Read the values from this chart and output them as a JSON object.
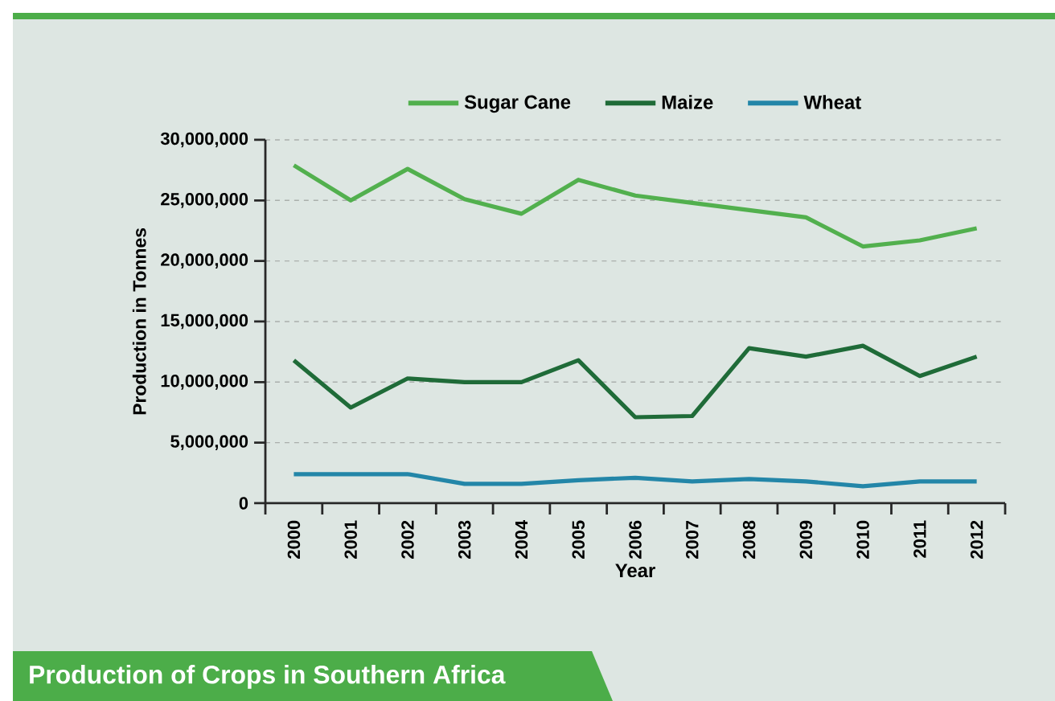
{
  "chart_data": {
    "type": "line",
    "title": "Production of Crops in Southern Africa",
    "xlabel": "Year",
    "ylabel": "Production in Tonnes",
    "categories": [
      "2000",
      "2001",
      "2002",
      "2003",
      "2004",
      "2005",
      "2006",
      "2007",
      "2008",
      "2009",
      "2010",
      "2011",
      "2012"
    ],
    "series": [
      {
        "name": "Sugar Cane",
        "color": "#52b04e",
        "values": [
          27900000,
          25000000,
          27600000,
          25100000,
          23900000,
          26700000,
          25400000,
          24800000,
          24200000,
          23600000,
          21200000,
          21700000,
          22700000
        ]
      },
      {
        "name": "Maize",
        "color": "#1f6b38",
        "values": [
          11800000,
          7900000,
          10300000,
          10000000,
          10000000,
          11800000,
          7100000,
          7200000,
          12800000,
          12100000,
          13000000,
          10500000,
          12100000
        ]
      },
      {
        "name": "Wheat",
        "color": "#2386a8",
        "values": [
          2400000,
          2400000,
          2400000,
          1600000,
          1600000,
          1900000,
          2100000,
          1800000,
          2000000,
          1800000,
          1400000,
          1800000,
          1800000
        ]
      }
    ],
    "ylim": [
      0,
      30000000
    ],
    "yticks": [
      0,
      {
        "value": 5000000,
        "label": "5,000,000"
      },
      {
        "value": 10000000,
        "label": "10,000,000"
      },
      {
        "value": 15000000,
        "label": "15,000,000"
      },
      {
        "value": 20000000,
        "label": "20,000,000"
      },
      {
        "value": 25000000,
        "label": "25,000,000"
      },
      {
        "value": 30000000,
        "label": "30,000,000"
      }
    ],
    "grid": "y",
    "legend": "top",
    "marker": "none",
    "line_style": "solid"
  }
}
